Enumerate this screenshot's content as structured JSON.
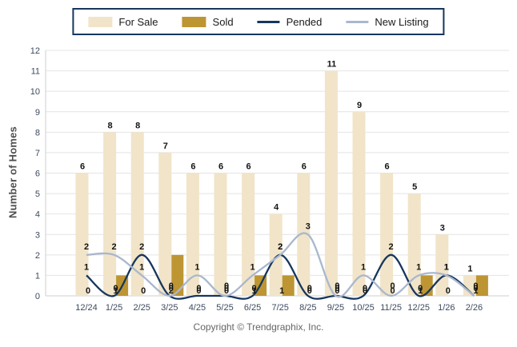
{
  "y_axis_title": "Number of Homes",
  "copyright": "Copyright © Trendgraphix, Inc.",
  "chart_data": {
    "type": "bar+line",
    "title": "",
    "categories": [
      "12/24",
      "1/25",
      "2/25",
      "3/25",
      "4/25",
      "5/25",
      "6/25",
      "7/25",
      "8/25",
      "9/25",
      "10/25",
      "11/25",
      "12/25",
      "1/26",
      "2/26"
    ],
    "series": [
      {
        "name": "For Sale",
        "type": "bar",
        "color": "#F1E4C8",
        "values": [
          6,
          8,
          8,
          7,
          6,
          6,
          6,
          4,
          6,
          11,
          9,
          6,
          5,
          3,
          1
        ]
      },
      {
        "name": "Sold",
        "type": "bar",
        "color": "#BD9533",
        "values": [
          0,
          1,
          0,
          2,
          0,
          0,
          1,
          1,
          0,
          0,
          0,
          0,
          1,
          0,
          1
        ]
      },
      {
        "name": "Pended",
        "type": "line",
        "color": "#16365D",
        "values": [
          1,
          0,
          2,
          0,
          0,
          0,
          0,
          2,
          0,
          0,
          0,
          2,
          0,
          1,
          0
        ]
      },
      {
        "name": "New Listing",
        "type": "line",
        "color": "#A9B7CE",
        "values": [
          2,
          2,
          1,
          0,
          1,
          0,
          1,
          2,
          3,
          0,
          1,
          0,
          1,
          1,
          0
        ]
      }
    ],
    "xlabel": "",
    "ylabel": "Number of Homes",
    "ylim": [
      0,
      12
    ],
    "yticks": [
      0,
      1,
      2,
      3,
      4,
      5,
      6,
      7,
      8,
      9,
      10,
      11,
      12
    ],
    "grid": true,
    "legend_position": "top",
    "value_labels": true,
    "colors": {
      "grid_line": "#E4E4E4",
      "axis_line": "#CFCFCF",
      "tick_label": "#3D4A5F",
      "value_label": "#141414",
      "legend_border": "#16365D"
    }
  }
}
